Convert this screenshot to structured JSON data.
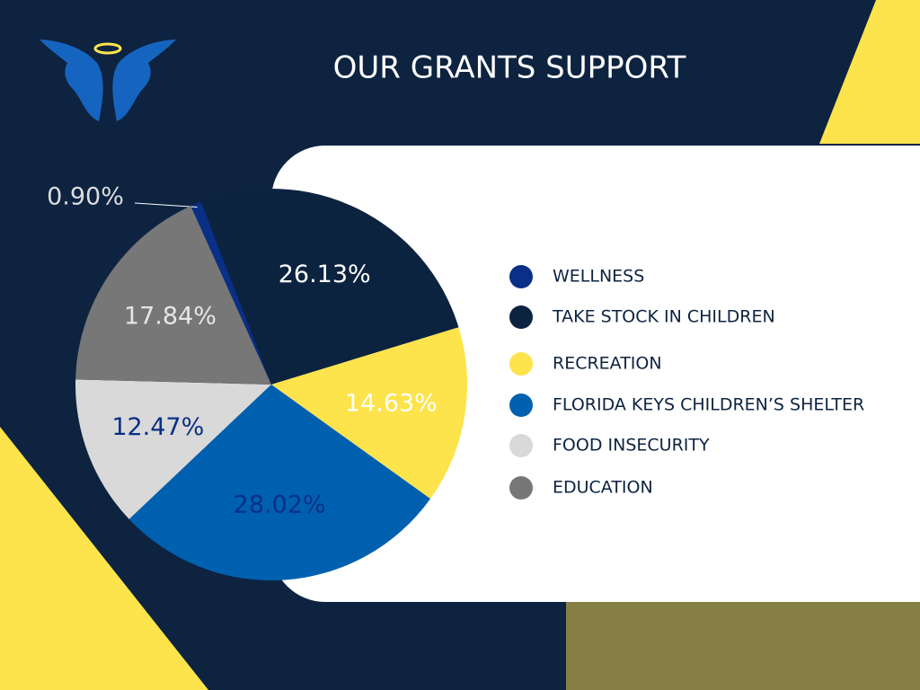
{
  "chart_data": {
    "type": "pie",
    "title": "OUR GRANTS SUPPORT",
    "categories": [
      "WELLNESS",
      "TAKE STOCK IN CHILDREN",
      "RECREATION",
      "FLORIDA KEYS CHILDREN’S SHELTER",
      "FOOD INSECURITY",
      "EDUCATION"
    ],
    "values": [
      0.9,
      26.13,
      14.63,
      28.02,
      12.47,
      17.84
    ],
    "value_labels": [
      "0.90%",
      "26.13%",
      "14.63%",
      "28.02%",
      "12.47%",
      "17.84%"
    ],
    "colors": [
      "#0a2f86",
      "#0c2340",
      "#fde34c",
      "#0060b0",
      "#d9d9d9",
      "#777777"
    ]
  }
}
